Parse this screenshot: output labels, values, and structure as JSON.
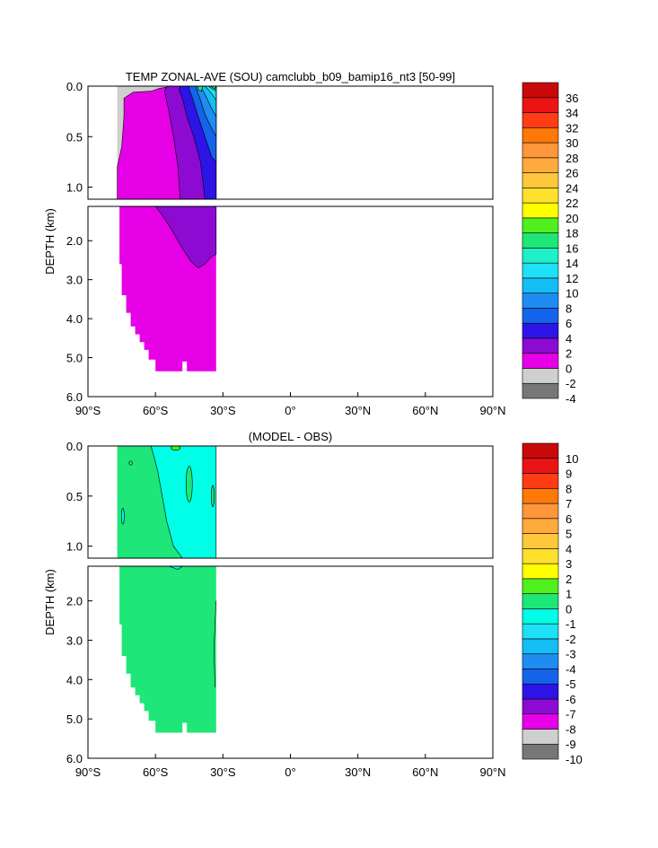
{
  "chart_data": [
    {
      "type": "heatmap",
      "title": "TEMP ZONAL-AVE (SOU) camclubb_b09_bamip16_nt3 [50-99]",
      "ylabel": "DEPTH (km)",
      "xlabel": "",
      "x_ticks": [
        "90°S",
        "60°S",
        "30°S",
        "0°",
        "30°N",
        "60°N",
        "90°N"
      ],
      "x_tick_values": [
        -90,
        -60,
        -30,
        0,
        30,
        60,
        90
      ],
      "xlim": [
        -90,
        90
      ],
      "y_ticks_upper": [
        "0.0",
        "0.5",
        "1.0"
      ],
      "y_ticks_lower": [
        "2.0",
        "3.0",
        "4.0",
        "5.0",
        "6.0"
      ],
      "ylim_upper": [
        0,
        1.12
      ],
      "ylim_lower": [
        1.12,
        6.0
      ],
      "colorbar_levels": [
        "-4",
        "-2",
        "0",
        "2",
        "4",
        "6",
        "8",
        "10",
        "12",
        "14",
        "16",
        "18",
        "20",
        "22",
        "24",
        "26",
        "28",
        "30",
        "32",
        "34",
        "36"
      ],
      "colorbar_colors": [
        "#777777",
        "#cfcfcf",
        "#e600e6",
        "#8c0ad2",
        "#2d14e6",
        "#1464eb",
        "#1e8cf0",
        "#14bef5",
        "#1ee1f5",
        "#1ef0c8",
        "#1ee678",
        "#50f01e",
        "#ffff00",
        "#ffe12d",
        "#ffc83c",
        "#ffaa3c",
        "#ff963c",
        "#ff780a",
        "#ff3c14",
        "#eb1414",
        "#c80a0a"
      ],
      "summary": {
        "data_x_range": [
          -77,
          -33
        ],
        "mean_temp_deep": "0 to 2",
        "surface_max_near_33S": "14 to 18"
      }
    },
    {
      "type": "heatmap",
      "title": "(MODEL - OBS)",
      "ylabel": "DEPTH (km)",
      "xlabel": "",
      "x_ticks": [
        "90°S",
        "60°S",
        "30°S",
        "0°",
        "30°N",
        "60°N",
        "90°N"
      ],
      "x_tick_values": [
        -90,
        -60,
        -30,
        0,
        30,
        60,
        90
      ],
      "xlim": [
        -90,
        90
      ],
      "y_ticks_upper": [
        "0.0",
        "0.5",
        "1.0"
      ],
      "y_ticks_lower": [
        "2.0",
        "3.0",
        "4.0",
        "5.0",
        "6.0"
      ],
      "ylim_upper": [
        0,
        1.12
      ],
      "ylim_lower": [
        1.12,
        6.0
      ],
      "colorbar_levels": [
        "-10",
        "-9",
        "-8",
        "-7",
        "-6",
        "-5",
        "-4",
        "-3",
        "-2",
        "-1",
        "0",
        "1",
        "2",
        "3",
        "4",
        "5",
        "6",
        "7",
        "8",
        "9",
        "10"
      ],
      "colorbar_colors": [
        "#777777",
        "#cfcfcf",
        "#e600e6",
        "#8c0ad2",
        "#2d14e6",
        "#1464eb",
        "#1e8cf0",
        "#14bef5",
        "#1ee1f5",
        "#00ffe6",
        "#1ee678",
        "#50f01e",
        "#ffff00",
        "#ffe12d",
        "#ffc83c",
        "#ffaa3c",
        "#ff963c",
        "#ff780a",
        "#ff3c14",
        "#eb1414",
        "#c80a0a"
      ],
      "summary": {
        "data_x_range": [
          -77,
          -33
        ],
        "dominant_bias": "0 to 1",
        "upper_east_bias": "-1 to 0"
      }
    }
  ]
}
